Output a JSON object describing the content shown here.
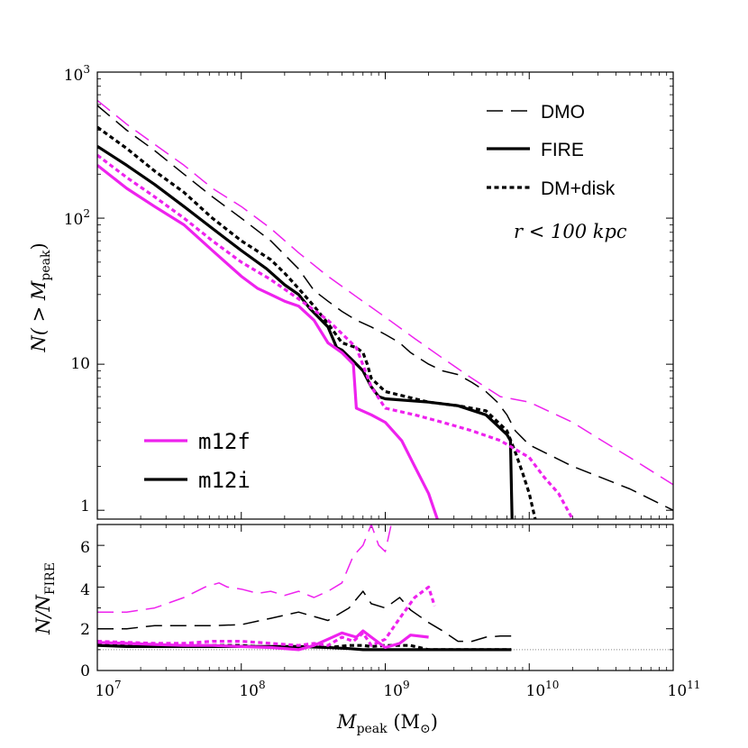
{
  "chart_data": [
    {
      "type": "line",
      "panel": "top",
      "xscale": "log",
      "yscale": "log",
      "xlim": [
        10000000,
        100000000000
      ],
      "ylim": [
        0.87,
        1000
      ],
      "ylabel": {
        "main": "N( > M",
        "sub": "peak",
        "close": ")"
      },
      "yticks": [
        {
          "value": 1,
          "base": "1",
          "exp": ""
        },
        {
          "value": 10,
          "base": "10",
          "exp": ""
        },
        {
          "value": 100,
          "base": "10",
          "exp": "2"
        },
        {
          "value": 1000,
          "base": "10",
          "exp": "3"
        }
      ],
      "legend_style": [
        {
          "label": "DMO",
          "dash": "18,9",
          "width": 1.5
        },
        {
          "label": "FIRE",
          "dash": "",
          "width": 3.2
        },
        {
          "label": "DM+disk",
          "dash": "5,3.5",
          "width": 3.2
        }
      ],
      "legend_halos": [
        {
          "label": "m12f",
          "color": "#ee22ee"
        },
        {
          "label": "m12i",
          "color": "#000000"
        }
      ],
      "annotation": "r < 100 kpc",
      "series": [
        {
          "name": "m12i DMO",
          "color": "#000000",
          "style": "DMO",
          "x": [
            10000000.0,
            16000000.0,
            25000000.0,
            40000000.0,
            63000000.0,
            100000000.0,
            160000000.0,
            250000000.0,
            320000000.0,
            400000000.0,
            500000000.0,
            630000000.0,
            800000000.0,
            1000000000.0,
            1260000000.0,
            1500000000.0,
            2000000000.0,
            2500000000.0,
            3200000000.0,
            4000000000.0,
            5000000000.0,
            6000000000.0,
            7000000000.0,
            8000000000.0,
            10000000000.0,
            20000000000.0,
            50000000000.0,
            100000000000.0
          ],
          "y": [
            590,
            400,
            290,
            200,
            140,
            100,
            70,
            45,
            32,
            27,
            23,
            20,
            18,
            16,
            14,
            12,
            10,
            9,
            8.5,
            7.5,
            6.5,
            5.5,
            4.5,
            3.5,
            2.8,
            2.0,
            1.4,
            1.0
          ]
        },
        {
          "name": "m12i FIRE",
          "color": "#000000",
          "style": "FIRE",
          "x": [
            10000000.0,
            16000000.0,
            25000000.0,
            40000000.0,
            63000000.0,
            100000000.0,
            150000000.0,
            200000000.0,
            250000000.0,
            300000000.0,
            400000000.0,
            460000000.0,
            500000000.0,
            600000000.0,
            700000000.0,
            800000000.0,
            900000000.0,
            1000000000.0,
            2000000000.0,
            3200000000.0,
            5000000000.0,
            7000000000.0,
            7400000000.0,
            7600000000.0
          ],
          "y": [
            310,
            230,
            170,
            120,
            85,
            60,
            45,
            35,
            30,
            24,
            18,
            13,
            12.5,
            10.5,
            9,
            7,
            6,
            5.8,
            5.5,
            5.2,
            4.5,
            3.3,
            3.0,
            0.87
          ]
        },
        {
          "name": "m12i DM+disk",
          "color": "#000000",
          "style": "DM+disk",
          "x": [
            10000000.0,
            16000000.0,
            25000000.0,
            40000000.0,
            63000000.0,
            100000000.0,
            160000000.0,
            200000000.0,
            250000000.0,
            320000000.0,
            400000000.0,
            500000000.0,
            630000000.0,
            700000000.0,
            750000000.0,
            800000000.0,
            1000000000.0,
            2000000000.0,
            3200000000.0,
            5000000000.0,
            7000000000.0,
            8000000000.0,
            9000000000.0,
            10000000000.0,
            11000000000.0
          ],
          "y": [
            420,
            300,
            210,
            150,
            100,
            70,
            52,
            42,
            33,
            25,
            19,
            14,
            13,
            12,
            10,
            8,
            6.5,
            5.5,
            5.2,
            4.8,
            3.5,
            2.5,
            1.8,
            1.3,
            0.87
          ]
        },
        {
          "name": "m12f DMO",
          "color": "#ee22ee",
          "style": "DMO",
          "x": [
            10000000.0,
            16000000.0,
            25000000.0,
            40000000.0,
            63000000.0,
            100000000.0,
            160000000.0,
            250000000.0,
            400000000.0,
            630000000.0,
            1000000000.0,
            1600000000.0,
            2500000000.0,
            4000000000.0,
            6300000000.0,
            10000000000.0,
            20000000000.0,
            32000000000.0,
            50000000000.0,
            100000000000.0
          ],
          "y": [
            640,
            440,
            320,
            230,
            160,
            120,
            85,
            58,
            40,
            29,
            21,
            15,
            11,
            8,
            6,
            5.5,
            4,
            3,
            2.3,
            1.5
          ]
        },
        {
          "name": "m12f FIRE",
          "color": "#ee22ee",
          "style": "FIRE",
          "x": [
            10000000.0,
            16000000.0,
            25000000.0,
            40000000.0,
            63000000.0,
            100000000.0,
            130000000.0,
            160000000.0,
            200000000.0,
            250000000.0,
            320000000.0,
            400000000.0,
            500000000.0,
            600000000.0,
            630000000.0,
            800000000.0,
            1000000000.0,
            1300000000.0,
            1600000000.0,
            2000000000.0,
            2300000000.0
          ],
          "y": [
            230,
            160,
            120,
            90,
            60,
            40,
            33,
            30,
            27,
            25,
            20,
            14,
            12,
            10,
            5,
            4.5,
            4.0,
            3.0,
            2.0,
            1.3,
            0.87
          ]
        },
        {
          "name": "m12f DM+disk",
          "color": "#ee22ee",
          "style": "DM+disk",
          "x": [
            10000000.0,
            16000000.0,
            25000000.0,
            40000000.0,
            63000000.0,
            100000000.0,
            160000000.0,
            250000000.0,
            400000000.0,
            630000000.0,
            800000000.0,
            1000000000.0,
            1600000000.0,
            2500000000.0,
            4000000000.0,
            6300000000.0,
            10000000000.0,
            12600000000.0,
            16000000000.0,
            20000000000.0
          ],
          "y": [
            270,
            190,
            140,
            100,
            70,
            50,
            38,
            28,
            20,
            13,
            7,
            5,
            4.5,
            4,
            3.5,
            3,
            2.3,
            1.7,
            1.3,
            0.87
          ]
        }
      ]
    },
    {
      "type": "line",
      "panel": "bottom",
      "xscale": "log",
      "yscale": "linear",
      "xlim": [
        10000000,
        100000000000
      ],
      "ylim": [
        0,
        7
      ],
      "xlabel": {
        "main": "M",
        "sub": "peak",
        "unit": " (M",
        "unit_sub": "⊙",
        "close": ")"
      },
      "ylabel": {
        "main": "N/N",
        "sub": "FIRE"
      },
      "yticks": [
        0,
        2,
        4,
        6
      ],
      "xticks": [
        {
          "value": 10000000,
          "base": "10",
          "exp": "7"
        },
        {
          "value": 100000000,
          "base": "10",
          "exp": "8"
        },
        {
          "value": 1000000000,
          "base": "10",
          "exp": "9"
        },
        {
          "value": 10000000000,
          "base": "10",
          "exp": "10"
        },
        {
          "value": 100000000000,
          "base": "10",
          "exp": "11"
        }
      ],
      "reference_line": 1,
      "series": [
        {
          "name": "m12i DMO ratio",
          "color": "#000000",
          "style": "DMO",
          "x": [
            10000000.0,
            16000000.0,
            25000000.0,
            40000000.0,
            63000000.0,
            100000000.0,
            160000000.0,
            250000000.0,
            400000000.0,
            560000000.0,
            700000000.0,
            800000000.0,
            1000000000.0,
            1260000000.0,
            1500000000.0,
            2000000000.0,
            2500000000.0,
            3200000000.0,
            4000000000.0,
            5000000000.0,
            6300000000.0,
            7500000000.0
          ],
          "y": [
            2.0,
            2.0,
            2.15,
            2.15,
            2.15,
            2.2,
            2.5,
            2.8,
            2.4,
            3.0,
            3.8,
            3.2,
            3.0,
            3.5,
            2.9,
            2.3,
            1.9,
            1.4,
            1.4,
            1.6,
            1.65,
            1.65
          ]
        },
        {
          "name": "m12i DM+disk ratio",
          "color": "#000000",
          "style": "DM+disk",
          "x": [
            10000000.0,
            16000000.0,
            25000000.0,
            40000000.0,
            63000000.0,
            100000000.0,
            160000000.0,
            250000000.0,
            320000000.0,
            400000000.0,
            560000000.0,
            700000000.0,
            800000000.0,
            1000000000.0,
            1260000000.0,
            1500000000.0,
            2000000000.0,
            3200000000.0,
            5000000000.0,
            7500000000.0
          ],
          "y": [
            1.3,
            1.25,
            1.25,
            1.2,
            1.2,
            1.2,
            1.1,
            1.1,
            1.2,
            1.1,
            1.2,
            1.2,
            1.15,
            1.2,
            1.2,
            1.2,
            1.0,
            1.0,
            1.0,
            1.0
          ]
        },
        {
          "name": "m12i FIRE ratio",
          "color": "#000000",
          "style": "FIRE",
          "x": [
            10000000.0,
            16000000.0,
            25000000.0,
            40000000.0,
            63000000.0,
            100000000.0,
            160000000.0,
            250000000.0,
            400000000.0,
            560000000.0,
            700000000.0,
            800000000.0,
            1000000000.0,
            1260000000.0,
            1500000000.0,
            2000000000.0,
            2500000000.0,
            3200000000.0,
            5000000000.0,
            7500000000.0
          ],
          "y": [
            1.2,
            1.15,
            1.15,
            1.15,
            1.15,
            1.15,
            1.15,
            1.15,
            1.1,
            1.05,
            1.0,
            1.0,
            1.0,
            1.0,
            1.0,
            1.0,
            1.0,
            1.0,
            1.0,
            1.0
          ]
        },
        {
          "name": "m12f DMO ratio",
          "color": "#ee22ee",
          "style": "DMO",
          "x": [
            10000000.0,
            16000000.0,
            25000000.0,
            40000000.0,
            56000000.0,
            70000000.0,
            80000000.0,
            100000000.0,
            130000000.0,
            160000000.0,
            200000000.0,
            250000000.0,
            320000000.0,
            400000000.0,
            500000000.0,
            600000000.0,
            700000000.0,
            800000000.0,
            900000000.0,
            1000000000.0,
            1100000000.0
          ],
          "y": [
            2.8,
            2.8,
            3.0,
            3.5,
            4.0,
            4.2,
            4.0,
            3.9,
            3.7,
            3.8,
            3.6,
            3.8,
            3.5,
            3.8,
            4.2,
            5.5,
            6.0,
            7.0,
            6.0,
            5.7,
            7.0
          ]
        },
        {
          "name": "m12f DM+disk ratio",
          "color": "#ee22ee",
          "style": "DM+disk",
          "x": [
            10000000.0,
            16000000.0,
            25000000.0,
            40000000.0,
            63000000.0,
            100000000.0,
            160000000.0,
            250000000.0,
            320000000.0,
            400000000.0,
            500000000.0,
            600000000.0,
            700000000.0,
            800000000.0,
            1000000000.0,
            1260000000.0,
            1600000000.0,
            2000000000.0,
            2200000000.0
          ],
          "y": [
            1.4,
            1.35,
            1.3,
            1.3,
            1.4,
            1.4,
            1.3,
            1.2,
            1.3,
            1.2,
            1.6,
            1.4,
            1.8,
            1.2,
            1.5,
            2.5,
            3.5,
            4.0,
            3.1
          ]
        },
        {
          "name": "m12f FIRE ratio",
          "color": "#ee22ee",
          "style": "FIRE",
          "x": [
            10000000.0,
            16000000.0,
            25000000.0,
            40000000.0,
            63000000.0,
            100000000.0,
            160000000.0,
            250000000.0,
            320000000.0,
            400000000.0,
            500000000.0,
            630000000.0,
            700000000.0,
            800000000.0,
            1000000000.0,
            1260000000.0,
            1500000000.0,
            2000000000.0
          ],
          "y": [
            1.35,
            1.3,
            1.25,
            1.2,
            1.2,
            1.15,
            1.1,
            1.0,
            1.2,
            1.5,
            1.8,
            1.6,
            1.9,
            1.6,
            1.1,
            1.3,
            1.7,
            1.6
          ]
        }
      ]
    }
  ]
}
